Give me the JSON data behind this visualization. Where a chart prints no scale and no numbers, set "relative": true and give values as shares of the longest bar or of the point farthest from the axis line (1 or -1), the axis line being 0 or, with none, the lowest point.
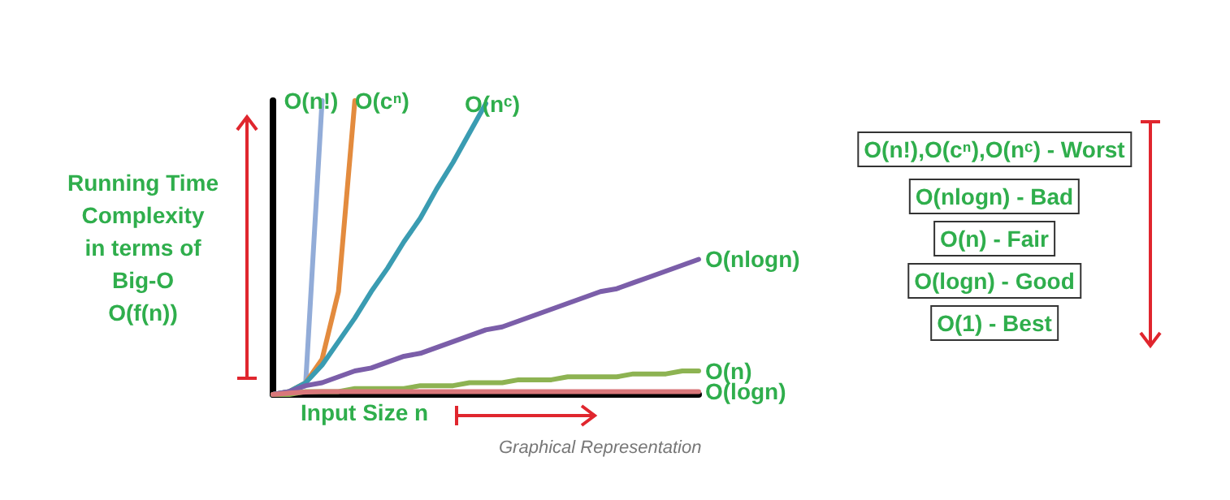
{
  "chart_data": {
    "type": "line",
    "relative": true,
    "legend": false,
    "grid": false,
    "marker": "none",
    "xlabel": "Input Size n",
    "ylabel": "Running Time\nComplexity\nin terms of\nBig-O\nO(f(n))",
    "annotations": [
      "O(n!),O(cⁿ),O(nᶜ) - Worst",
      "O(nlogn) - Bad",
      "O(n) - Fair",
      "O(logn) - Good",
      "O(1) - Best",
      "Graphical Representation"
    ],
    "categories": [
      null,
      null,
      null,
      null,
      null,
      null,
      null,
      null,
      null,
      null,
      null,
      null,
      null,
      null,
      null,
      null,
      null,
      null,
      null,
      null,
      null,
      null,
      null,
      null,
      null,
      null,
      null
    ],
    "series": [
      {
        "name": "O(n!)",
        "color": "#92acd8",
        "values": [
          0,
          0.01,
          0.04,
          1.0,
          null,
          null,
          null,
          null,
          null,
          null,
          null,
          null,
          null,
          null,
          null,
          null,
          null,
          null,
          null,
          null,
          null,
          null,
          null,
          null,
          null,
          null,
          null
        ]
      },
      {
        "name": "O(cⁿ)",
        "color": "#e38b3e",
        "values": [
          0,
          0.01,
          0.04,
          0.12,
          0.35,
          1.0,
          null,
          null,
          null,
          null,
          null,
          null,
          null,
          null,
          null,
          null,
          null,
          null,
          null,
          null,
          null,
          null,
          null,
          null,
          null,
          null,
          null
        ]
      },
      {
        "name": "O(nᶜ)",
        "color": "#3a9cb2",
        "values": [
          0,
          0.01,
          0.04,
          0.1,
          0.18,
          0.26,
          0.35,
          0.43,
          0.52,
          0.6,
          0.7,
          0.79,
          0.89,
          0.99,
          null,
          null,
          null,
          null,
          null,
          null,
          null,
          null,
          null,
          null,
          null,
          null,
          null
        ]
      },
      {
        "name": "O(nlogn)",
        "color": "#7b5ea9",
        "values": [
          0,
          0.01,
          0.03,
          0.04,
          0.06,
          0.08,
          0.09,
          0.11,
          0.13,
          0.14,
          0.16,
          0.18,
          0.2,
          0.22,
          0.23,
          0.25,
          0.27,
          0.29,
          0.31,
          0.33,
          0.35,
          0.36,
          0.38,
          0.4,
          0.42,
          0.44,
          0.46
        ]
      },
      {
        "name": "O(n)",
        "color": "#8db352",
        "values": [
          0,
          0,
          0.01,
          0.01,
          0.01,
          0.02,
          0.02,
          0.02,
          0.02,
          0.03,
          0.03,
          0.03,
          0.04,
          0.04,
          0.04,
          0.05,
          0.05,
          0.05,
          0.06,
          0.06,
          0.06,
          0.06,
          0.07,
          0.07,
          0.07,
          0.08,
          0.08
        ]
      },
      {
        "name": "O(logn)",
        "color": "#d9777a",
        "values": [
          0,
          0.005,
          0.008,
          0.01,
          0.01,
          0.01,
          0.01,
          0.01,
          0.01,
          0.01,
          0.01,
          0.01,
          0.01,
          0.01,
          0.01,
          0.01,
          0.01,
          0.01,
          0.01,
          0.01,
          0.01,
          0.01,
          0.01,
          0.01,
          0.01,
          0.01,
          0.01
        ]
      }
    ]
  }
}
